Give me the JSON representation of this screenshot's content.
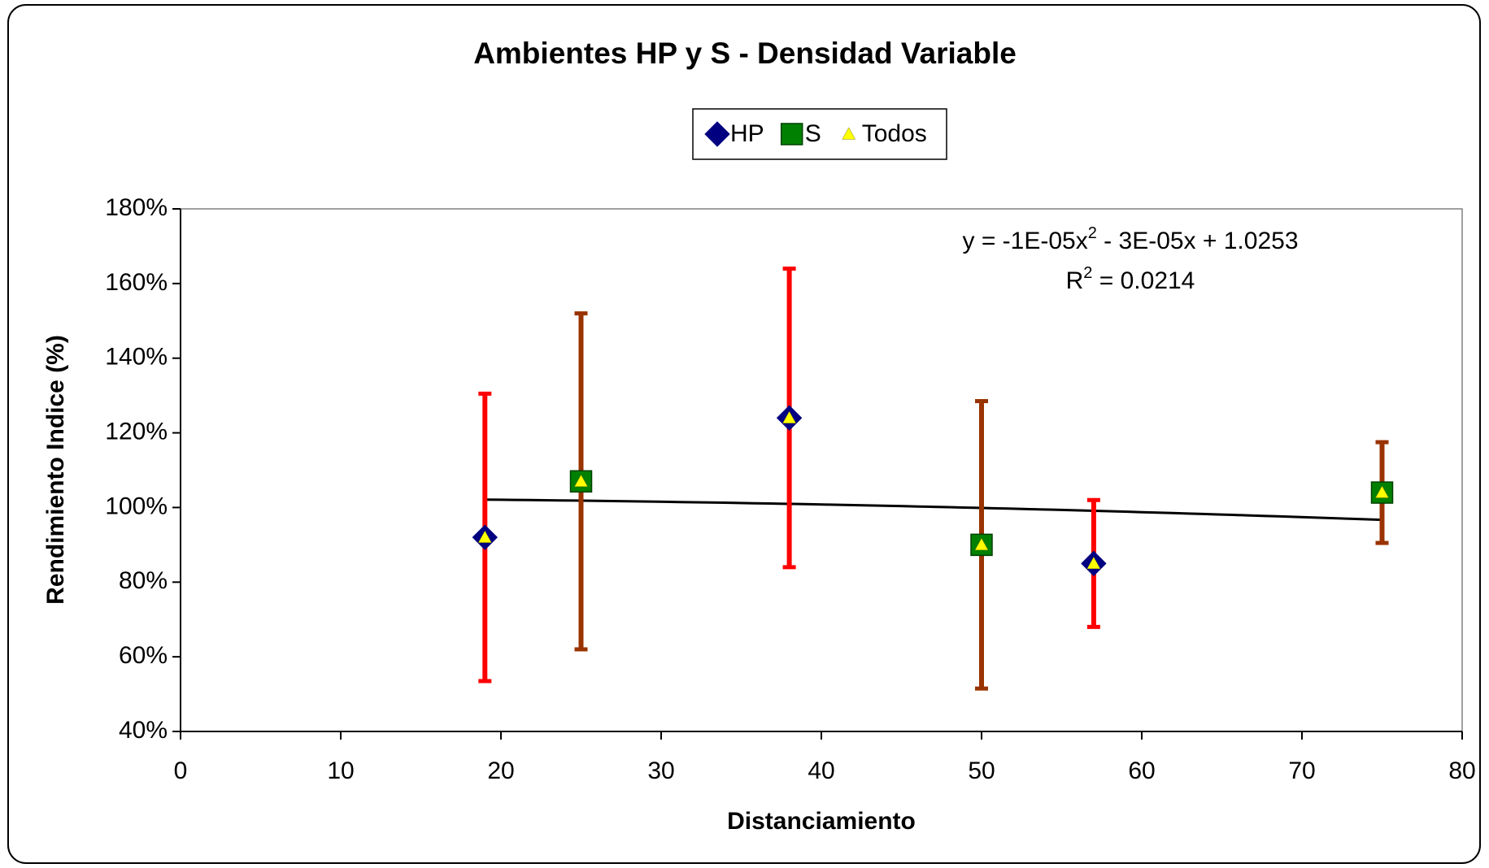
{
  "chart_data": {
    "type": "scatter",
    "title": "Ambientes HP y S - Densidad Variable",
    "x_label": "Distanciamiento",
    "y_label": "Rendimiento Indice (%)",
    "xlim": [
      0,
      80
    ],
    "xticks": [
      0,
      10,
      20,
      30,
      40,
      50,
      60,
      70,
      80
    ],
    "ylim": [
      40,
      180
    ],
    "yticks": [
      {
        "value": 40,
        "label": "40%"
      },
      {
        "value": 60,
        "label": "60%"
      },
      {
        "value": 80,
        "label": "80%"
      },
      {
        "value": 100,
        "label": "100%"
      },
      {
        "value": 120,
        "label": "120%"
      },
      {
        "value": 140,
        "label": "140%"
      },
      {
        "value": 160,
        "label": "160%"
      },
      {
        "value": 180,
        "label": "180%"
      }
    ],
    "grid": false,
    "legend": "top",
    "series": [
      {
        "name": "HP",
        "color": "#000080",
        "marker": "diamond",
        "x": [
          19,
          38,
          57
        ],
        "values": [
          92,
          124,
          85
        ],
        "errors": [
          38.5,
          40,
          17
        ],
        "error_color": "#ff0000"
      },
      {
        "name": "S",
        "color": "#008000",
        "marker": "square",
        "x": [
          25,
          50,
          75
        ],
        "values": [
          107,
          90,
          104
        ],
        "errors": [
          45,
          38.5,
          13.5
        ],
        "error_color": "#993300"
      },
      {
        "name": "Todos",
        "color": "#ffff00",
        "marker": "triangle",
        "x": [
          19,
          25,
          38,
          50,
          57,
          75
        ],
        "values": [
          92,
          107,
          124,
          90,
          85,
          104
        ]
      }
    ],
    "trendline": {
      "x": [
        19,
        75
      ],
      "coefficients": [
        -0.001,
        -0.003,
        102.53
      ],
      "color": "#000000",
      "equation": [
        "y = -1E-05x",
        "2",
        " - 3E-05x + 1.0253"
      ],
      "r2": [
        "R",
        "2",
        " = 0.0214"
      ]
    }
  }
}
